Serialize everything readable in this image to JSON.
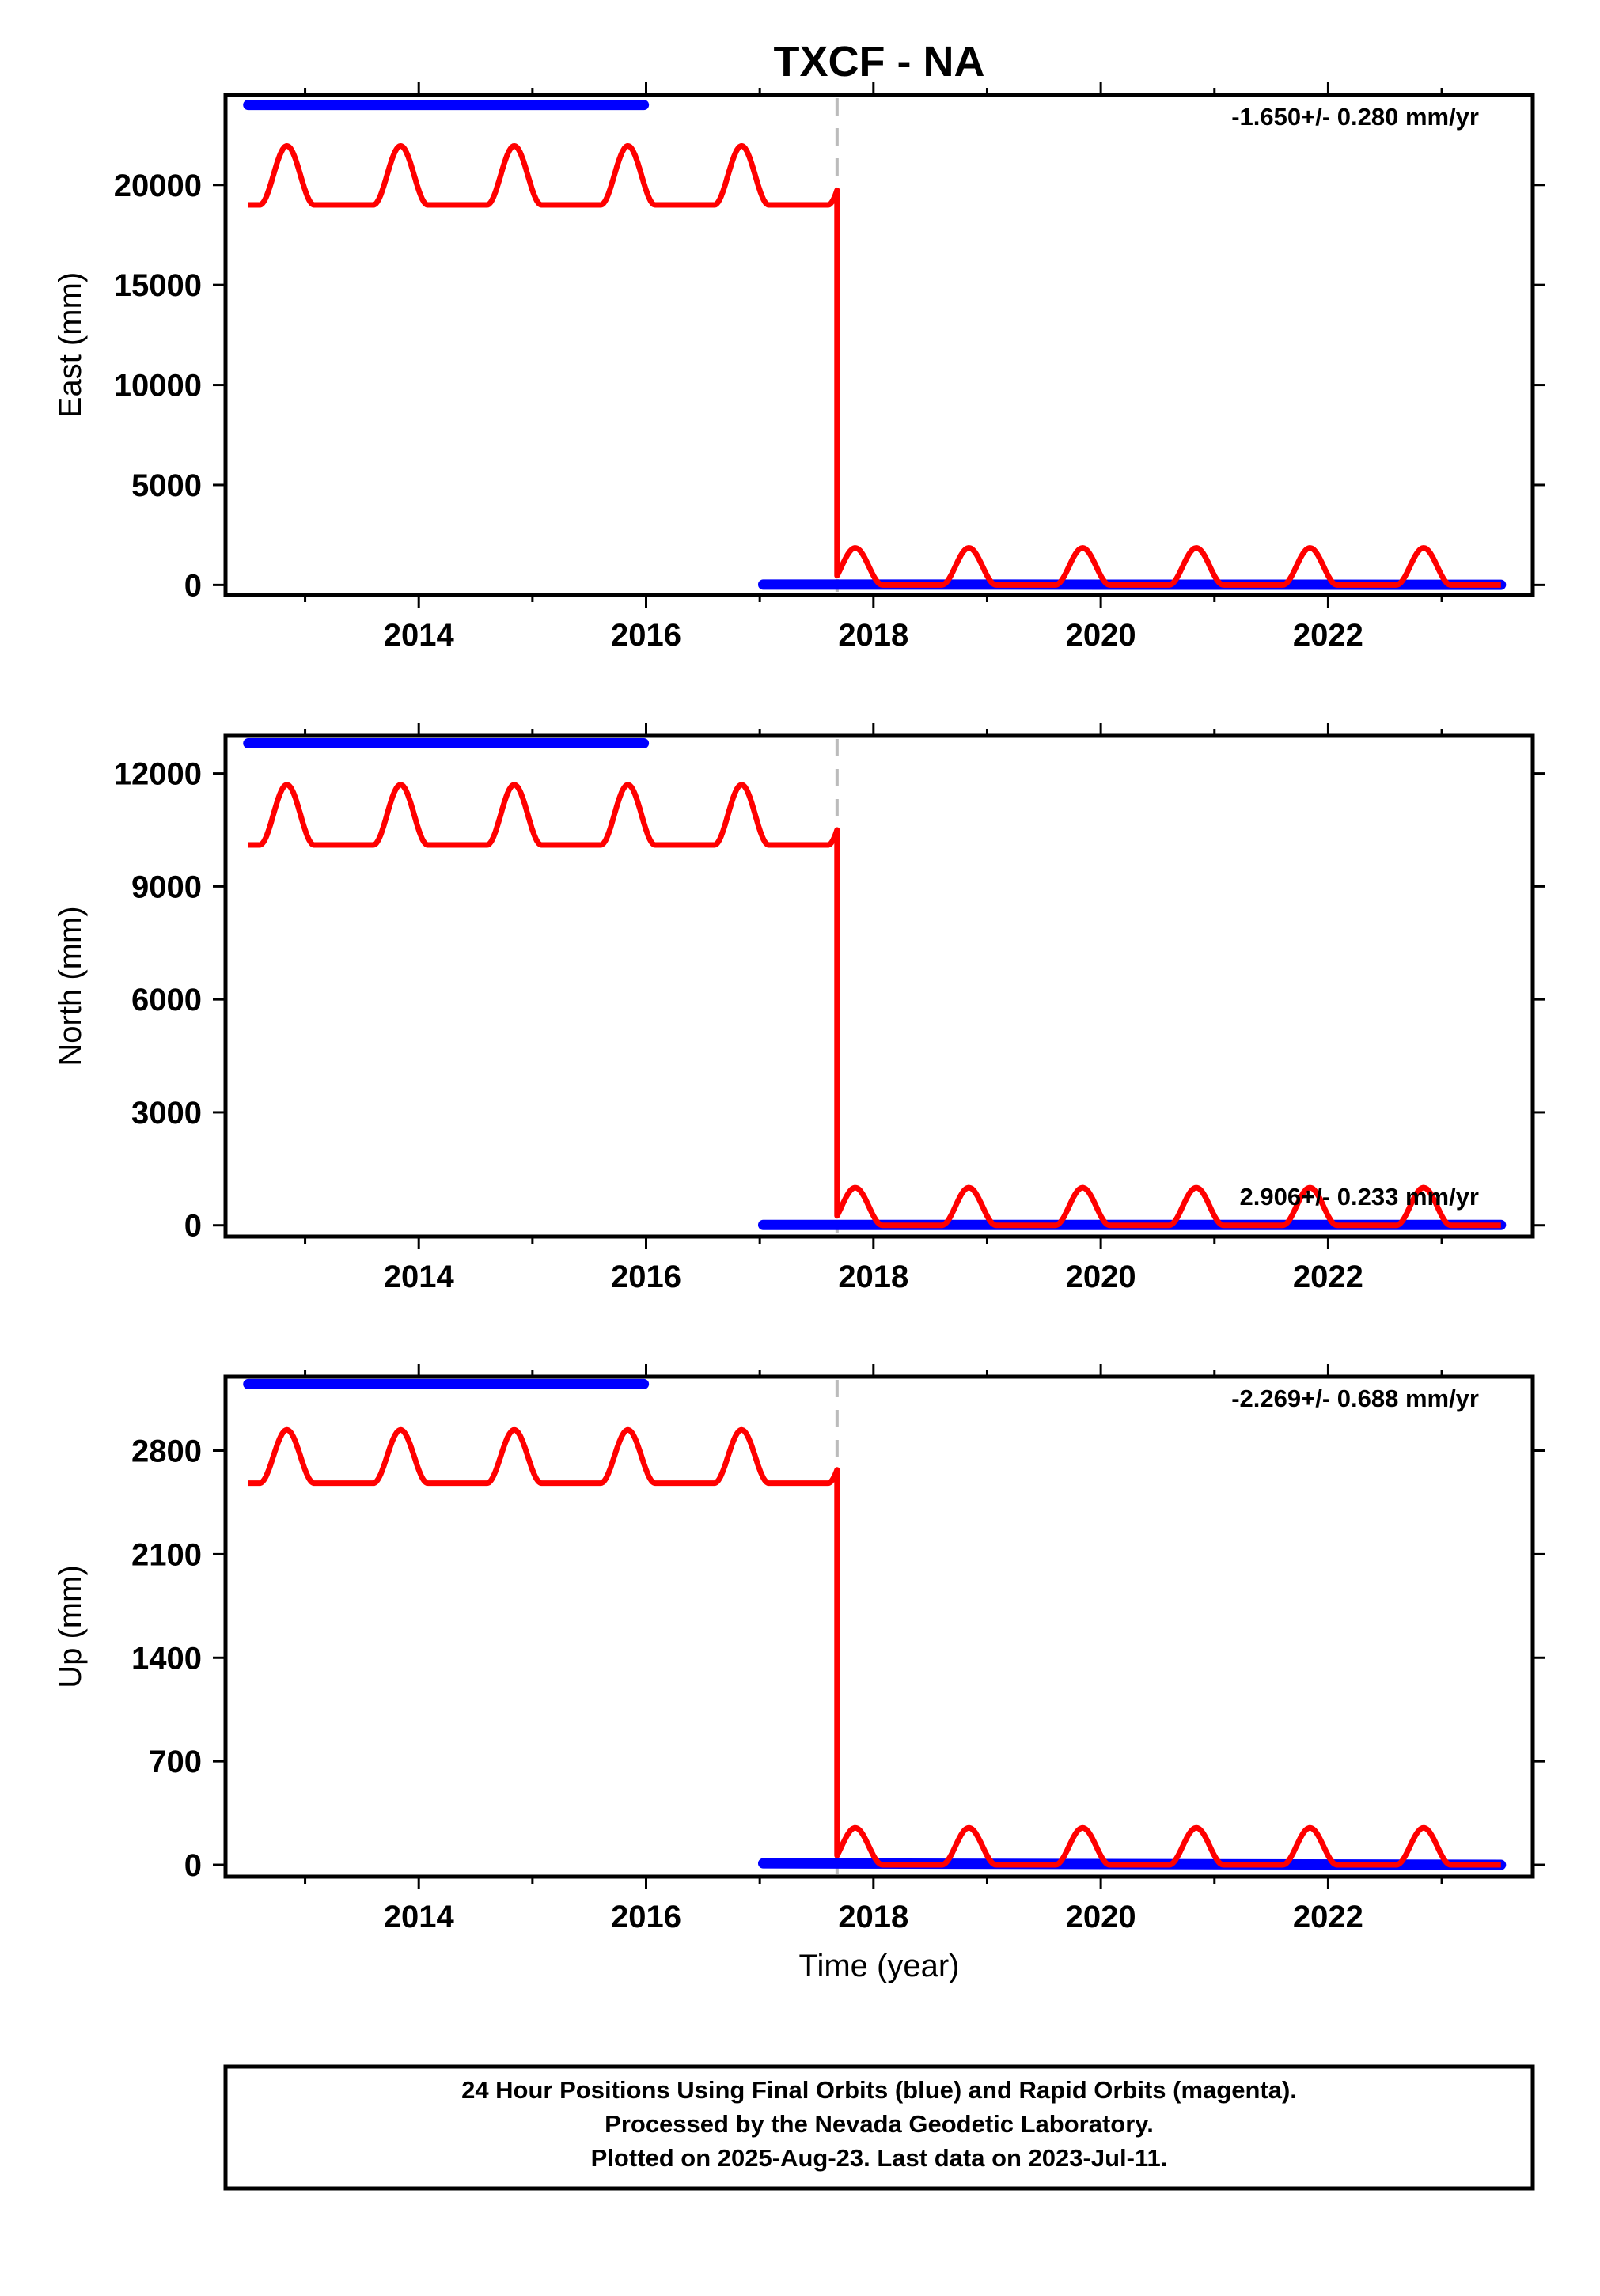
{
  "chart_data": {
    "title": "TXCF - NA",
    "type": "scatter",
    "x_range": [
      2012.3,
      2023.8
    ],
    "x_ticks": [
      2014,
      2016,
      2018,
      2020,
      2022
    ],
    "x_tick_labels": [
      "2014",
      "2016",
      "2018",
      "2020",
      "2022"
    ],
    "xlabel": "Time (year)",
    "discontinuity_x": 2017.68,
    "colors": {
      "final_orbits": "#0000ff",
      "model": "#ff0000",
      "discontinuity": "#bbbbbb"
    },
    "model_params": {
      "amplitude_scale": 1.0
    },
    "panels": [
      {
        "ylabel": "East (mm)",
        "ylim": [
          -500,
          24500
        ],
        "yticks": [
          0,
          5000,
          10000,
          15000,
          20000
        ],
        "ytick_labels": [
          "0",
          "5000",
          "10000",
          "15000",
          "20000"
        ],
        "rate": "-1.650+/- 0.280 mm/yr",
        "rate_position": "top-right",
        "series": [
          {
            "kind": "final-orbits",
            "segments": [
              {
                "x": [
                  2012.5,
                  2015.98
                ],
                "y": [
                  24000,
                  24000
                ]
              },
              {
                "x": [
                  2017.03,
                  2023.52
                ],
                "y": [
                  20,
                  10
                ]
              }
            ]
          },
          {
            "kind": "model",
            "segments": [
              {
                "x_start": 2012.5,
                "x_end": 2017.68,
                "base": 19000,
                "amp": 2950,
                "phase": 2012.84
              },
              {
                "x_start": 2017.68,
                "x_end": 2023.52,
                "base": 0,
                "amp": 1850,
                "phase": 2017.84
              }
            ]
          }
        ]
      },
      {
        "ylabel": "North (mm)",
        "ylim": [
          -300,
          13000
        ],
        "yticks": [
          0,
          3000,
          6000,
          9000,
          12000
        ],
        "ytick_labels": [
          "0",
          "3000",
          "6000",
          "9000",
          "12000"
        ],
        "rate": "2.906+/- 0.233 mm/yr",
        "rate_position": "bottom-right",
        "series": [
          {
            "kind": "final-orbits",
            "segments": [
              {
                "x": [
                  2012.5,
                  2015.98
                ],
                "y": [
                  12800,
                  12800
                ]
              },
              {
                "x": [
                  2017.03,
                  2023.52
                ],
                "y": [
                  10,
                  10
                ]
              }
            ]
          },
          {
            "kind": "model",
            "segments": [
              {
                "x_start": 2012.5,
                "x_end": 2017.68,
                "base": 10100,
                "amp": 1600,
                "phase": 2012.84
              },
              {
                "x_start": 2017.68,
                "x_end": 2023.52,
                "base": 0,
                "amp": 1000,
                "phase": 2017.84
              }
            ]
          }
        ]
      },
      {
        "ylabel": "Up (mm)",
        "ylim": [
          -80,
          3300
        ],
        "yticks": [
          0,
          700,
          1400,
          2100,
          2800
        ],
        "ytick_labels": [
          "0",
          "700",
          "1400",
          "2100",
          "2800"
        ],
        "rate": "-2.269+/- 0.688 mm/yr",
        "rate_position": "top-right",
        "series": [
          {
            "kind": "final-orbits",
            "segments": [
              {
                "x": [
                  2012.5,
                  2015.98
                ],
                "y": [
                  3250,
                  3250
                ]
              },
              {
                "x": [
                  2017.03,
                  2023.52
                ],
                "y": [
                  10,
                  0
                ]
              }
            ]
          },
          {
            "kind": "model",
            "segments": [
              {
                "x_start": 2012.5,
                "x_end": 2017.68,
                "base": 2580,
                "amp": 360,
                "phase": 2012.84
              },
              {
                "x_start": 2017.68,
                "x_end": 2023.52,
                "base": 0,
                "amp": 250,
                "phase": 2017.84
              }
            ]
          }
        ]
      }
    ]
  },
  "footer": {
    "line1": "24 Hour Positions Using Final Orbits (blue) and Rapid Orbits (magenta).",
    "line2": "Processed by the Nevada Geodetic Laboratory.",
    "line3": "Plotted on 2025-Aug-23. Last data on 2023-Jul-11."
  }
}
